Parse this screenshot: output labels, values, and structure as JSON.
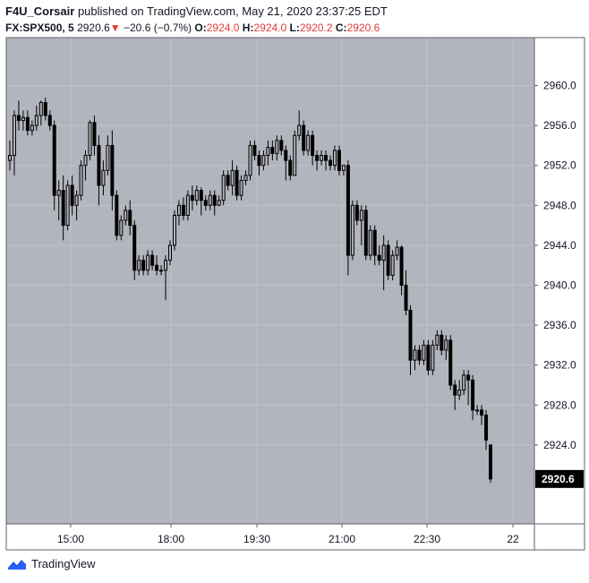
{
  "header": {
    "author": "F4U_Corsair",
    "published_text": "published on TradingView.com, May 21, 2020 23:37:25 EDT",
    "symbol": "FX:SPX500, 5",
    "last": "2920.6",
    "down_arrow": "▼",
    "change": "−20.6 (−0.7%)",
    "o_label": "O:",
    "o_value": "2924.0",
    "h_label": "H:",
    "h_value": "2924.0",
    "l_label": "L:",
    "l_value": "2920.2",
    "c_label": "C:",
    "c_value": "2920.6"
  },
  "footer": {
    "brand": "TradingView",
    "logo_icon": "tradingview-logo-icon"
  },
  "colors": {
    "plot_bg": "#b2b5be",
    "candle": "#000000",
    "grid": "#c2c4ca",
    "accent_down": "#e03b3b",
    "logo_blue": "#2962ff"
  },
  "chart_data": {
    "type": "candlestick",
    "title": "",
    "y_ticks": [
      2960.0,
      2956.0,
      2952.0,
      2948.0,
      2944.0,
      2940.0,
      2936.0,
      2932.0,
      2928.0,
      2924.0
    ],
    "y_tick_labels": [
      "2960.0",
      "2956.0",
      "2952.0",
      "2948.0",
      "2944.0",
      "2940.0",
      "2936.0",
      "2932.0",
      "2928.0",
      "2924.0"
    ],
    "ylim": [
      2916.1,
      2964.8
    ],
    "x_ticks": [
      "15:00",
      "18:00",
      "19:30",
      "21:00",
      "22:30",
      "22"
    ],
    "last_price_label": "2920.6",
    "candles": [
      [
        2952.5,
        2954.5,
        2951.5,
        2953.0
      ],
      [
        2953.0,
        2957.5,
        2951.0,
        2957.0
      ],
      [
        2957.0,
        2958.5,
        2955.5,
        2956.5
      ],
      [
        2956.5,
        2957.5,
        2955.5,
        2956.8
      ],
      [
        2956.8,
        2957.5,
        2955.0,
        2955.5
      ],
      [
        2955.5,
        2956.5,
        2955.0,
        2956.0
      ],
      [
        2956.0,
        2958.0,
        2955.5,
        2957.0
      ],
      [
        2957.0,
        2958.5,
        2956.0,
        2958.3
      ],
      [
        2958.3,
        2958.8,
        2956.5,
        2957.0
      ],
      [
        2957.0,
        2957.5,
        2955.5,
        2956.0
      ],
      [
        2956.0,
        2956.5,
        2947.5,
        2949.0
      ],
      [
        2949.0,
        2950.5,
        2946.5,
        2949.5
      ],
      [
        2949.5,
        2951.0,
        2944.5,
        2946.0
      ],
      [
        2946.0,
        2950.5,
        2945.5,
        2950.0
      ],
      [
        2950.0,
        2951.0,
        2947.0,
        2948.0
      ],
      [
        2948.0,
        2949.5,
        2946.5,
        2949.0
      ],
      [
        2949.0,
        2952.5,
        2948.5,
        2952.0
      ],
      [
        2952.0,
        2953.5,
        2950.5,
        2953.0
      ],
      [
        2953.0,
        2956.5,
        2952.5,
        2956.3
      ],
      [
        2956.3,
        2957.0,
        2953.0,
        2954.0
      ],
      [
        2954.0,
        2955.0,
        2948.0,
        2950.0
      ],
      [
        2950.0,
        2952.5,
        2949.0,
        2951.5
      ],
      [
        2951.5,
        2955.0,
        2951.0,
        2954.0
      ],
      [
        2954.0,
        2955.5,
        2947.5,
        2949.0
      ],
      [
        2949.0,
        2949.5,
        2944.5,
        2945.0
      ],
      [
        2945.0,
        2947.0,
        2944.5,
        2946.5
      ],
      [
        2946.5,
        2948.0,
        2946.0,
        2947.5
      ],
      [
        2947.5,
        2948.5,
        2945.0,
        2946.0
      ],
      [
        2946.0,
        2946.5,
        2940.5,
        2941.5
      ],
      [
        2941.5,
        2943.0,
        2941.0,
        2942.5
      ],
      [
        2942.5,
        2943.0,
        2941.0,
        2941.5
      ],
      [
        2941.5,
        2943.5,
        2941.0,
        2943.0
      ],
      [
        2943.0,
        2943.5,
        2941.5,
        2942.0
      ],
      [
        2942.0,
        2943.0,
        2941.0,
        2941.5
      ],
      [
        2941.5,
        2942.0,
        2941.0,
        2941.5
      ],
      [
        2941.5,
        2943.0,
        2938.5,
        2942.5
      ],
      [
        2942.5,
        2944.5,
        2942.0,
        2944.0
      ],
      [
        2944.0,
        2947.5,
        2943.5,
        2947.0
      ],
      [
        2947.0,
        2948.5,
        2946.0,
        2948.0
      ],
      [
        2948.0,
        2948.8,
        2946.5,
        2947.0
      ],
      [
        2947.0,
        2949.5,
        2946.5,
        2949.0
      ],
      [
        2949.0,
        2950.0,
        2947.5,
        2948.5
      ],
      [
        2948.5,
        2950.0,
        2948.0,
        2949.5
      ],
      [
        2949.5,
        2949.8,
        2947.0,
        2948.5
      ],
      [
        2948.5,
        2949.0,
        2947.5,
        2948.0
      ],
      [
        2948.0,
        2949.5,
        2947.5,
        2949.0
      ],
      [
        2949.0,
        2949.5,
        2947.0,
        2948.0
      ],
      [
        2948.0,
        2949.0,
        2948.0,
        2948.5
      ],
      [
        2948.5,
        2951.5,
        2948.0,
        2951.0
      ],
      [
        2951.0,
        2951.5,
        2949.5,
        2950.0
      ],
      [
        2950.0,
        2952.5,
        2949.0,
        2951.5
      ],
      [
        2951.5,
        2952.0,
        2948.5,
        2949.0
      ],
      [
        2949.0,
        2951.0,
        2948.5,
        2950.5
      ],
      [
        2950.5,
        2951.5,
        2950.0,
        2951.0
      ],
      [
        2951.0,
        2954.5,
        2950.5,
        2954.0
      ],
      [
        2954.0,
        2954.5,
        2952.5,
        2953.0
      ],
      [
        2953.0,
        2953.5,
        2951.0,
        2952.0
      ],
      [
        2952.0,
        2953.5,
        2951.5,
        2953.0
      ],
      [
        2953.0,
        2954.5,
        2952.0,
        2953.8
      ],
      [
        2953.8,
        2954.5,
        2952.5,
        2953.2
      ],
      [
        2953.2,
        2955.0,
        2952.5,
        2954.5
      ],
      [
        2954.5,
        2955.0,
        2953.0,
        2953.5
      ],
      [
        2953.5,
        2954.0,
        2950.5,
        2952.5
      ],
      [
        2952.5,
        2953.0,
        2950.5,
        2951.0
      ],
      [
        2951.0,
        2955.5,
        2951.0,
        2955.0
      ],
      [
        2955.0,
        2957.5,
        2954.5,
        2956.0
      ],
      [
        2956.0,
        2956.5,
        2953.0,
        2953.5
      ],
      [
        2953.5,
        2955.5,
        2953.0,
        2955.0
      ],
      [
        2955.0,
        2955.5,
        2952.0,
        2953.0
      ],
      [
        2953.0,
        2953.5,
        2951.5,
        2952.5
      ],
      [
        2952.5,
        2953.5,
        2952.0,
        2953.0
      ],
      [
        2953.0,
        2953.5,
        2951.5,
        2952.5
      ],
      [
        2952.5,
        2953.0,
        2951.5,
        2952.0
      ],
      [
        2952.0,
        2954.0,
        2951.5,
        2953.5
      ],
      [
        2953.5,
        2954.0,
        2951.0,
        2951.5
      ],
      [
        2951.5,
        2952.0,
        2951.0,
        2952.0
      ],
      [
        2952.0,
        2952.5,
        2941.0,
        2943.0
      ],
      [
        2943.0,
        2948.5,
        2942.5,
        2948.0
      ],
      [
        2948.0,
        2948.5,
        2946.0,
        2946.5
      ],
      [
        2946.5,
        2948.0,
        2944.0,
        2947.5
      ],
      [
        2947.5,
        2948.0,
        2942.5,
        2943.0
      ],
      [
        2943.0,
        2946.0,
        2942.5,
        2945.5
      ],
      [
        2945.5,
        2946.0,
        2942.0,
        2943.0
      ],
      [
        2943.0,
        2944.0,
        2942.0,
        2942.5
      ],
      [
        2942.5,
        2945.0,
        2939.5,
        2944.0
      ],
      [
        2944.0,
        2944.5,
        2940.5,
        2941.0
      ],
      [
        2941.0,
        2943.5,
        2940.5,
        2943.0
      ],
      [
        2943.0,
        2944.5,
        2942.5,
        2943.8
      ],
      [
        2943.8,
        2944.0,
        2939.0,
        2940.0
      ],
      [
        2940.0,
        2941.5,
        2937.0,
        2937.5
      ],
      [
        2937.5,
        2938.0,
        2931.0,
        2932.5
      ],
      [
        2932.5,
        2934.0,
        2931.5,
        2933.5
      ],
      [
        2933.5,
        2934.0,
        2932.0,
        2932.5
      ],
      [
        2932.5,
        2934.5,
        2932.0,
        2934.0
      ],
      [
        2934.0,
        2934.5,
        2931.0,
        2931.5
      ],
      [
        2931.5,
        2934.5,
        2931.0,
        2934.0
      ],
      [
        2934.0,
        2935.5,
        2933.5,
        2935.0
      ],
      [
        2935.0,
        2935.5,
        2933.0,
        2933.5
      ],
      [
        2933.5,
        2935.0,
        2932.5,
        2934.5
      ],
      [
        2934.5,
        2935.0,
        2929.5,
        2930.0
      ],
      [
        2930.0,
        2930.5,
        2927.5,
        2929.0
      ],
      [
        2929.0,
        2930.5,
        2928.5,
        2929.5
      ],
      [
        2929.5,
        2931.5,
        2929.0,
        2931.0
      ],
      [
        2931.0,
        2931.5,
        2928.0,
        2930.5
      ],
      [
        2930.5,
        2931.0,
        2926.5,
        2927.5
      ],
      [
        2927.5,
        2928.0,
        2927.0,
        2927.5
      ],
      [
        2927.5,
        2928.0,
        2926.0,
        2927.0
      ],
      [
        2927.0,
        2927.5,
        2923.5,
        2924.5
      ],
      [
        2924.0,
        2924.0,
        2920.2,
        2920.6
      ]
    ]
  }
}
